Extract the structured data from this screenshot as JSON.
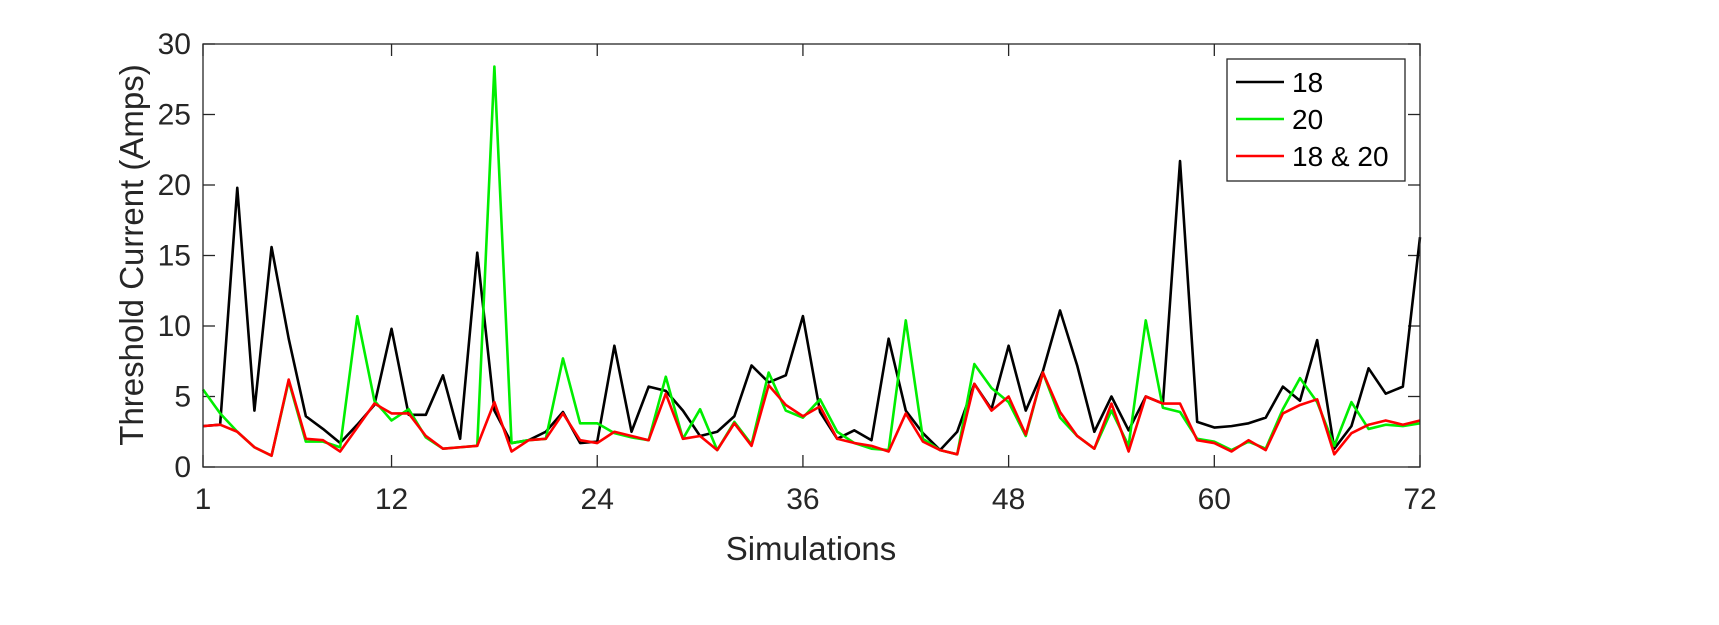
{
  "chart_data": {
    "type": "line",
    "xlabel": "Simulations",
    "ylabel": "Threshold Current (Amps)",
    "xlim": [
      1,
      72
    ],
    "ylim": [
      0,
      30
    ],
    "xticks": [
      1,
      12,
      24,
      36,
      48,
      60,
      72
    ],
    "yticks": [
      0,
      5,
      10,
      15,
      20,
      25,
      30
    ],
    "grid": false,
    "legend_position": "top-right",
    "x": [
      1,
      2,
      3,
      4,
      5,
      6,
      7,
      8,
      9,
      10,
      11,
      12,
      13,
      14,
      15,
      16,
      17,
      18,
      19,
      20,
      21,
      22,
      23,
      24,
      25,
      26,
      27,
      28,
      29,
      30,
      31,
      32,
      33,
      34,
      35,
      36,
      37,
      38,
      39,
      40,
      41,
      42,
      43,
      44,
      45,
      46,
      47,
      48,
      49,
      50,
      51,
      52,
      53,
      54,
      55,
      56,
      57,
      58,
      59,
      60,
      61,
      62,
      63,
      64,
      65,
      66,
      67,
      68,
      69,
      70,
      71,
      72
    ],
    "series": [
      {
        "name": "18",
        "color": "#000000",
        "values": [
          2.9,
          3.0,
          19.8,
          4.0,
          15.6,
          9.1,
          3.6,
          2.7,
          1.7,
          3.0,
          4.4,
          9.8,
          3.7,
          3.7,
          6.5,
          2.0,
          15.2,
          4.0,
          1.7,
          1.9,
          2.5,
          3.9,
          1.7,
          1.8,
          8.6,
          2.5,
          5.7,
          5.4,
          4.0,
          2.2,
          2.5,
          3.6,
          7.2,
          6.0,
          6.5,
          10.7,
          3.9,
          2.0,
          2.6,
          1.9,
          9.1,
          4.0,
          2.4,
          1.2,
          2.5,
          5.9,
          4.1,
          8.6,
          4.0,
          6.8,
          11.1,
          7.2,
          2.5,
          5.0,
          2.6,
          5.0,
          4.5,
          21.7,
          3.2,
          2.8,
          2.9,
          3.1,
          3.5,
          5.7,
          4.7,
          9.0,
          1.3,
          2.9,
          7.0,
          5.2,
          5.7,
          16.3
        ]
      },
      {
        "name": "20",
        "color": "#00ee00",
        "values": [
          5.5,
          3.8,
          2.5,
          1.4,
          0.8,
          6.1,
          1.8,
          1.8,
          1.4,
          10.7,
          4.7,
          3.3,
          4.1,
          2.1,
          1.3,
          1.4,
          1.5,
          28.4,
          1.7,
          1.9,
          2.0,
          7.7,
          3.1,
          3.1,
          2.4,
          2.1,
          1.9,
          6.4,
          2.0,
          4.1,
          1.2,
          3.2,
          1.6,
          6.7,
          4.0,
          3.5,
          4.8,
          2.5,
          1.7,
          1.3,
          1.2,
          10.4,
          2.0,
          1.2,
          0.9,
          7.3,
          5.6,
          4.6,
          2.2,
          6.7,
          3.5,
          2.2,
          1.3,
          4.0,
          1.5,
          10.4,
          4.2,
          3.9,
          2.0,
          1.8,
          1.2,
          1.8,
          1.3,
          4.1,
          6.3,
          4.6,
          1.5,
          4.6,
          2.7,
          3.0,
          2.9,
          3.1
        ]
      },
      {
        "name": "18 & 20",
        "color": "#ff0000",
        "values": [
          2.9,
          3.0,
          2.5,
          1.4,
          0.8,
          6.2,
          2.0,
          1.9,
          1.1,
          2.8,
          4.5,
          3.8,
          3.8,
          2.2,
          1.3,
          1.4,
          1.5,
          4.6,
          1.1,
          1.9,
          2.0,
          3.8,
          1.9,
          1.7,
          2.5,
          2.2,
          1.9,
          5.2,
          2.0,
          2.2,
          1.2,
          3.1,
          1.5,
          5.8,
          4.4,
          3.6,
          4.3,
          2.0,
          1.7,
          1.5,
          1.1,
          3.8,
          1.8,
          1.2,
          0.9,
          5.9,
          4.0,
          5.0,
          2.3,
          6.7,
          3.9,
          2.2,
          1.3,
          4.5,
          1.1,
          5.0,
          4.5,
          4.5,
          1.9,
          1.7,
          1.1,
          1.9,
          1.2,
          3.8,
          4.4,
          4.8,
          0.9,
          2.4,
          3.0,
          3.3,
          3.0,
          3.3
        ]
      }
    ]
  }
}
